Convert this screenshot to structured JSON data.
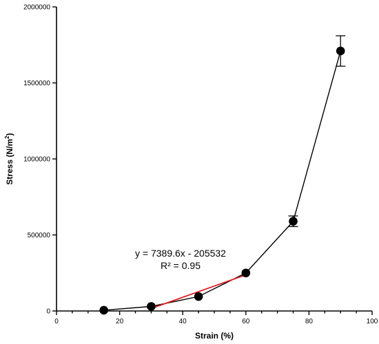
{
  "chart_data": {
    "type": "scatter",
    "title": "",
    "xlabel": "Strain (%)",
    "ylabel_main": "Stress (N/m",
    "ylabel_sup": "2",
    "ylabel_close": ")",
    "xlim": [
      0,
      100
    ],
    "ylim": [
      0,
      2000000
    ],
    "x_ticks": [
      0,
      20,
      40,
      60,
      80,
      100
    ],
    "x_tick_labels": [
      "0",
      "20",
      "40",
      "60",
      "80",
      "100"
    ],
    "y_ticks": [
      0,
      500000,
      1000000,
      1500000,
      2000000
    ],
    "y_tick_labels": [
      "0",
      "500000",
      "1000000",
      "1500000",
      "2000000"
    ],
    "grid": false,
    "series": [
      {
        "color": "#000000",
        "marker": "circle",
        "connected": true,
        "points": [
          {
            "x": 15,
            "y": 5000,
            "err": 0
          },
          {
            "x": 30,
            "y": 30000,
            "err": 0
          },
          {
            "x": 45,
            "y": 95000,
            "err": 0
          },
          {
            "x": 60,
            "y": 250000,
            "err": 0
          },
          {
            "x": 75,
            "y": 590000,
            "err": 35000
          },
          {
            "x": 90,
            "y": 1710000,
            "err": 100000
          }
        ]
      }
    ],
    "trendline": {
      "color": "#e0191f",
      "slope": 7389.6,
      "intercept": -205532,
      "x_range": [
        30,
        60
      ],
      "equation": "y = 7389.6x - 205532",
      "r_squared": "R² = 0.95"
    }
  }
}
